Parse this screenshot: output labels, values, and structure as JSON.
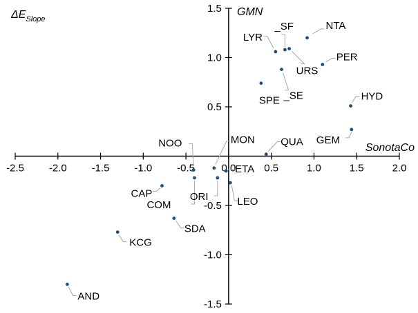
{
  "chart_data": {
    "type": "scatter",
    "xlabel": "SonotaCo",
    "ylabel": "GMN",
    "corner_label_main": "ΔE",
    "corner_label_sub": "Slope",
    "xlim": [
      -2.5,
      2.0
    ],
    "ylim": [
      -1.5,
      1.5
    ],
    "x_ticks": [
      -2.5,
      -2.0,
      -1.5,
      -1.0,
      -0.5,
      0.0,
      0.5,
      1.0,
      1.5,
      2.0
    ],
    "x_tick_labels": [
      "-2.5",
      "-2.0",
      "-1.5",
      "-1.0",
      "-0.5",
      "0.0",
      "0.5",
      "1.0",
      "1.5",
      "2.0"
    ],
    "y_ticks": [
      -1.5,
      -1.0,
      -0.5,
      0.5,
      1.0,
      1.5
    ],
    "y_tick_labels": [
      "-1.5",
      "-1.0",
      "-0.5",
      "0.5",
      "1.0",
      "1.5"
    ],
    "marker_color": "#1f4e79",
    "points": [
      {
        "label": "NTA",
        "x": 0.92,
        "y": 1.2
      },
      {
        "label": "_SF",
        "x": 0.66,
        "y": 1.08
      },
      {
        "label": "LYR",
        "x": 0.55,
        "y": 1.06
      },
      {
        "label": "URS",
        "x": 0.71,
        "y": 1.09
      },
      {
        "label": "PER",
        "x": 1.1,
        "y": 0.93
      },
      {
        "label": "_SE",
        "x": 0.62,
        "y": 0.88
      },
      {
        "label": "SPE",
        "x": 0.38,
        "y": 0.74
      },
      {
        "label": "HYD",
        "x": 1.43,
        "y": 0.51
      },
      {
        "label": "GEM",
        "x": 1.44,
        "y": 0.27
      },
      {
        "label": "QUA",
        "x": 0.44,
        "y": 0.02
      },
      {
        "label": "NOO",
        "x": -0.41,
        "y": -0.14
      },
      {
        "label": "MON",
        "x": -0.17,
        "y": -0.12
      },
      {
        "label": "ETA",
        "x": -0.03,
        "y": -0.15
      },
      {
        "label": "ORI",
        "x": -0.13,
        "y": -0.22
      },
      {
        "label": "COM",
        "x": -0.4,
        "y": -0.22
      },
      {
        "label": "LEO",
        "x": 0.02,
        "y": -0.27
      },
      {
        "label": "CAP",
        "x": -0.78,
        "y": -0.3
      },
      {
        "label": "SDA",
        "x": -0.64,
        "y": -0.63
      },
      {
        "label": "KCG",
        "x": -1.3,
        "y": -0.77
      },
      {
        "label": "AND",
        "x": -1.89,
        "y": -1.3
      }
    ]
  }
}
